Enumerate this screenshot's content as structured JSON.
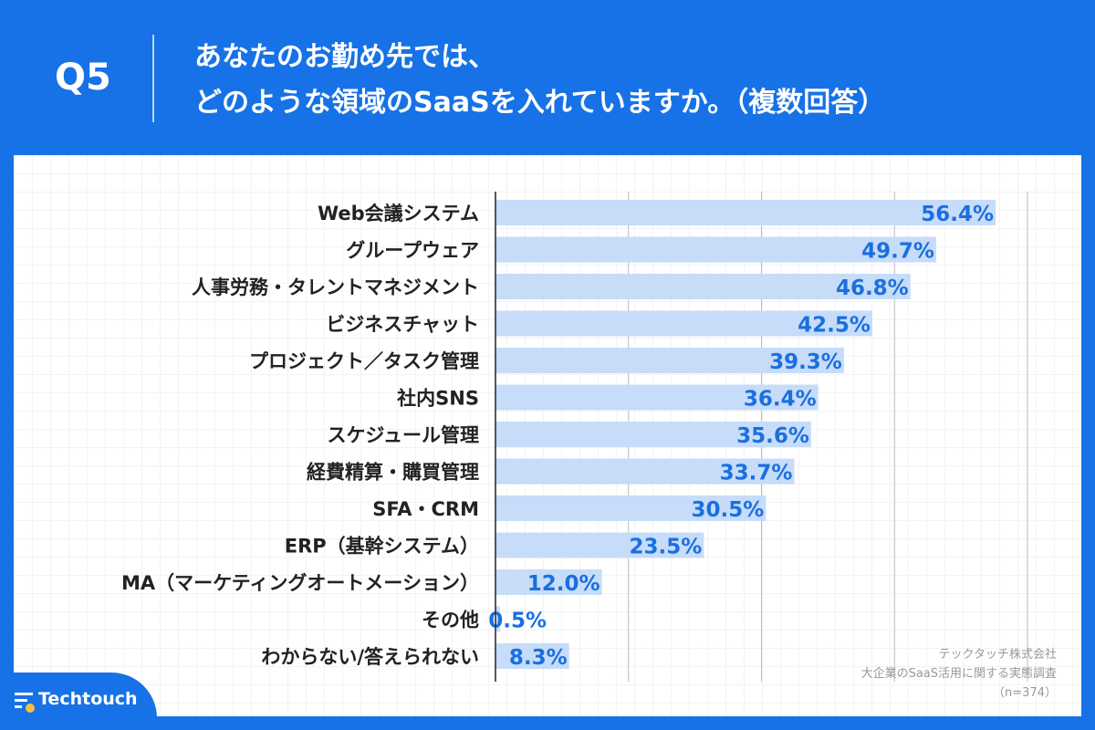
{
  "header": {
    "question": "Q5",
    "title_line1": "あなたのお勤め先では、",
    "title_line2": "どのような領域のSaaSを入れていますか。（複数回答）"
  },
  "footer": {
    "company": "テックタッチ株式会社",
    "survey": "大企業のSaaS活用に関する実態調査",
    "sample": "（n=374）",
    "logo": "Techtouch"
  },
  "colors": {
    "brand": "#1672e6",
    "bar": "#c6dcf9",
    "label": "#1a6fe0"
  },
  "chart_data": {
    "type": "bar",
    "orientation": "horizontal",
    "unit": "%",
    "categories": [
      "Web会議システム",
      "グループウェア",
      "人事労務・タレントマネジメント",
      "ビジネスチャット",
      "プロジェクト／タスク管理",
      "社内SNS",
      "スケジュール管理",
      "経費精算・購買管理",
      "SFA・CRM",
      "ERP（基幹システム）",
      "MA（マーケティングオートメーション）",
      "その他",
      "わからない/答えられない"
    ],
    "values": [
      56.4,
      49.7,
      46.8,
      42.5,
      39.3,
      36.4,
      35.6,
      33.7,
      30.5,
      23.5,
      12.0,
      0.5,
      8.3
    ],
    "labels": [
      "56.4%",
      "49.7%",
      "46.8%",
      "42.5%",
      "39.3%",
      "36.4%",
      "35.6%",
      "33.7%",
      "30.5%",
      "23.5%",
      "12.0%",
      "0.5%",
      "8.3%"
    ],
    "xlim": [
      0,
      60
    ],
    "grid_step": 15,
    "grid": true
  }
}
